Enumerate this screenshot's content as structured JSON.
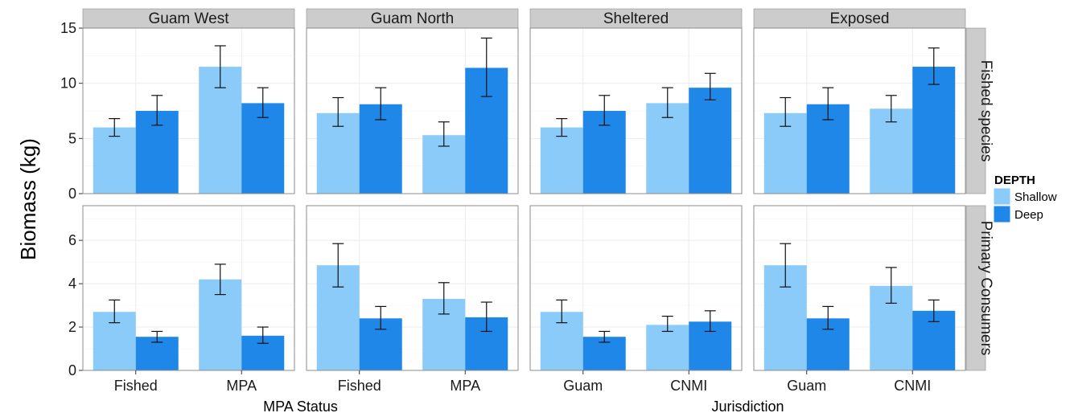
{
  "chart_data": {
    "type": "bar",
    "ylabel": "Biomass (kg)",
    "legend": {
      "title": "DEPTH",
      "position": "right",
      "entries": [
        {
          "name": "Shallow",
          "color": "#8ACBFA"
        },
        {
          "name": "Deep",
          "color": "#1E87E8"
        }
      ]
    },
    "grid": true,
    "column_strips": [
      "Guam West",
      "Guam North",
      "Sheltered",
      "Exposed"
    ],
    "row_strips": [
      "Fished species",
      "Primary Consumers"
    ],
    "xlabels": [
      {
        "text": "MPA Status",
        "columns": [
          0,
          1
        ]
      },
      {
        "text": "Jurisdiction",
        "columns": [
          2,
          3
        ]
      }
    ],
    "rows": [
      {
        "ylim": [
          0,
          15
        ],
        "yticks": [
          "0",
          "5",
          "10",
          "15"
        ]
      },
      {
        "ylim": [
          0,
          7.6
        ],
        "yticks": [
          "0",
          "2",
          "4",
          "6"
        ]
      }
    ],
    "panels": [
      {
        "row": 0,
        "col": 0,
        "categories": [
          "Fished",
          "MPA"
        ],
        "series": [
          {
            "name": "Shallow",
            "values": [
              6.0,
              11.5
            ],
            "err_low": [
              5.2,
              9.6
            ],
            "err_high": [
              6.8,
              13.4
            ]
          },
          {
            "name": "Deep",
            "values": [
              7.5,
              8.2
            ],
            "err_low": [
              6.2,
              6.9
            ],
            "err_high": [
              8.9,
              9.6
            ]
          }
        ]
      },
      {
        "row": 0,
        "col": 1,
        "categories": [
          "Fished",
          "MPA"
        ],
        "series": [
          {
            "name": "Shallow",
            "values": [
              7.3,
              5.3
            ],
            "err_low": [
              6.1,
              4.3
            ],
            "err_high": [
              8.7,
              6.5
            ]
          },
          {
            "name": "Deep",
            "values": [
              8.1,
              11.4
            ],
            "err_low": [
              6.7,
              8.8
            ],
            "err_high": [
              9.6,
              14.1
            ]
          }
        ]
      },
      {
        "row": 0,
        "col": 2,
        "categories": [
          "Guam",
          "CNMI"
        ],
        "series": [
          {
            "name": "Shallow",
            "values": [
              6.0,
              8.2
            ],
            "err_low": [
              5.2,
              6.9
            ],
            "err_high": [
              6.8,
              9.6
            ]
          },
          {
            "name": "Deep",
            "values": [
              7.5,
              9.6
            ],
            "err_low": [
              6.2,
              8.5
            ],
            "err_high": [
              8.9,
              10.9
            ]
          }
        ]
      },
      {
        "row": 0,
        "col": 3,
        "categories": [
          "Guam",
          "CNMI"
        ],
        "series": [
          {
            "name": "Shallow",
            "values": [
              7.3,
              7.7
            ],
            "err_low": [
              6.1,
              6.5
            ],
            "err_high": [
              8.7,
              8.9
            ]
          },
          {
            "name": "Deep",
            "values": [
              8.1,
              11.5
            ],
            "err_low": [
              6.7,
              9.9
            ],
            "err_high": [
              9.6,
              13.2
            ]
          }
        ]
      },
      {
        "row": 1,
        "col": 0,
        "categories": [
          "Fished",
          "MPA"
        ],
        "series": [
          {
            "name": "Shallow",
            "values": [
              2.7,
              4.2
            ],
            "err_low": [
              2.2,
              3.5
            ],
            "err_high": [
              3.25,
              4.9
            ]
          },
          {
            "name": "Deep",
            "values": [
              1.55,
              1.6
            ],
            "err_low": [
              1.3,
              1.25
            ],
            "err_high": [
              1.8,
              2.0
            ]
          }
        ]
      },
      {
        "row": 1,
        "col": 1,
        "categories": [
          "Fished",
          "MPA"
        ],
        "series": [
          {
            "name": "Shallow",
            "values": [
              4.85,
              3.3
            ],
            "err_low": [
              3.85,
              2.6
            ],
            "err_high": [
              5.85,
              4.05
            ]
          },
          {
            "name": "Deep",
            "values": [
              2.4,
              2.45
            ],
            "err_low": [
              1.9,
              1.8
            ],
            "err_high": [
              2.95,
              3.15
            ]
          }
        ]
      },
      {
        "row": 1,
        "col": 2,
        "categories": [
          "Guam",
          "CNMI"
        ],
        "series": [
          {
            "name": "Shallow",
            "values": [
              2.7,
              2.1
            ],
            "err_low": [
              2.2,
              1.8
            ],
            "err_high": [
              3.25,
              2.5
            ]
          },
          {
            "name": "Deep",
            "values": [
              1.55,
              2.25
            ],
            "err_low": [
              1.3,
              1.8
            ],
            "err_high": [
              1.8,
              2.75
            ]
          }
        ]
      },
      {
        "row": 1,
        "col": 3,
        "categories": [
          "Guam",
          "CNMI"
        ],
        "series": [
          {
            "name": "Shallow",
            "values": [
              4.85,
              3.9
            ],
            "err_low": [
              3.85,
              3.1
            ],
            "err_high": [
              5.85,
              4.75
            ]
          },
          {
            "name": "Deep",
            "values": [
              2.4,
              2.75
            ],
            "err_low": [
              1.9,
              2.25
            ],
            "err_high": [
              2.95,
              3.25
            ]
          }
        ]
      }
    ]
  }
}
